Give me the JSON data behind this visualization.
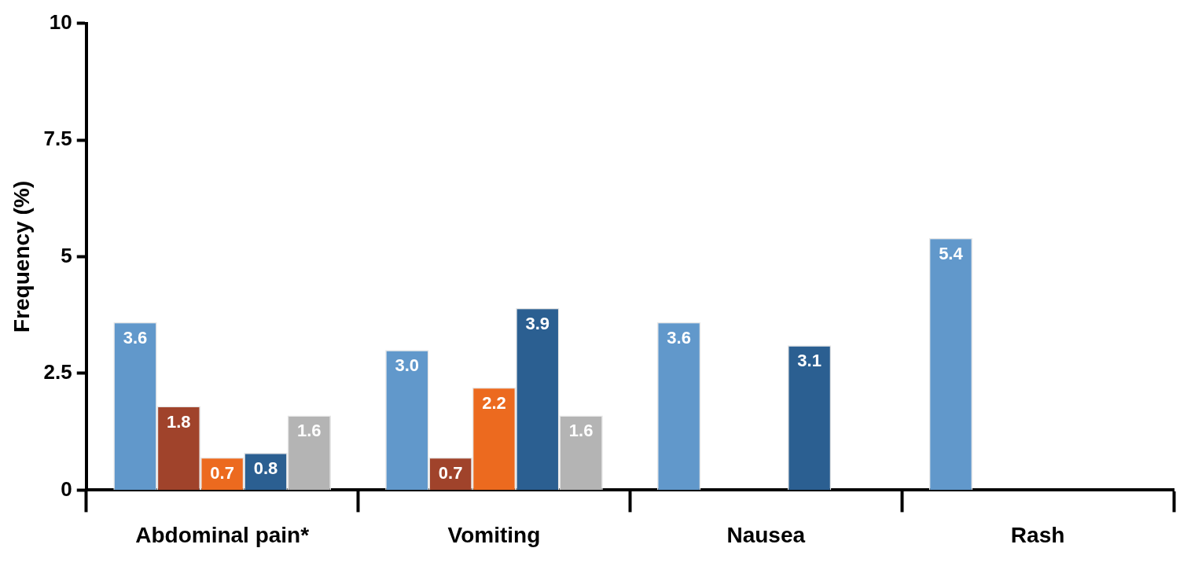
{
  "chart_data": {
    "type": "bar",
    "ylabel": "Frequency (%)",
    "categories": [
      "Abdominal pain*",
      "Vomiting",
      "Nausea",
      "Rash"
    ],
    "series": [
      {
        "color": "#6198cb",
        "values": [
          3.6,
          3.0,
          3.6,
          5.4
        ],
        "value_labels": [
          "3.6",
          "3.0",
          "3.6",
          "5.4"
        ]
      },
      {
        "color": "#a0432b",
        "values": [
          1.8,
          0.7,
          null,
          null
        ],
        "value_labels": [
          "1.8",
          "0.7",
          null,
          null
        ]
      },
      {
        "color": "#ec6a1f",
        "values": [
          0.7,
          2.2,
          null,
          null
        ],
        "value_labels": [
          "0.7",
          "2.2",
          null,
          null
        ]
      },
      {
        "color": "#2b5f91",
        "values": [
          0.8,
          3.9,
          3.1,
          null
        ],
        "value_labels": [
          "0.8",
          "3.9",
          "3.1",
          null
        ]
      },
      {
        "color": "#b4b4b4",
        "values": [
          1.6,
          1.6,
          null,
          null
        ],
        "value_labels": [
          "1.6",
          "1.6",
          null,
          null
        ]
      }
    ],
    "ylim": [
      0,
      10
    ],
    "yticks": [
      0,
      {
        "value": 2.5,
        "label": "2.5"
      },
      5,
      {
        "value": 7.5,
        "label": "7.5"
      },
      10
    ],
    "grid": false,
    "legend": false
  }
}
